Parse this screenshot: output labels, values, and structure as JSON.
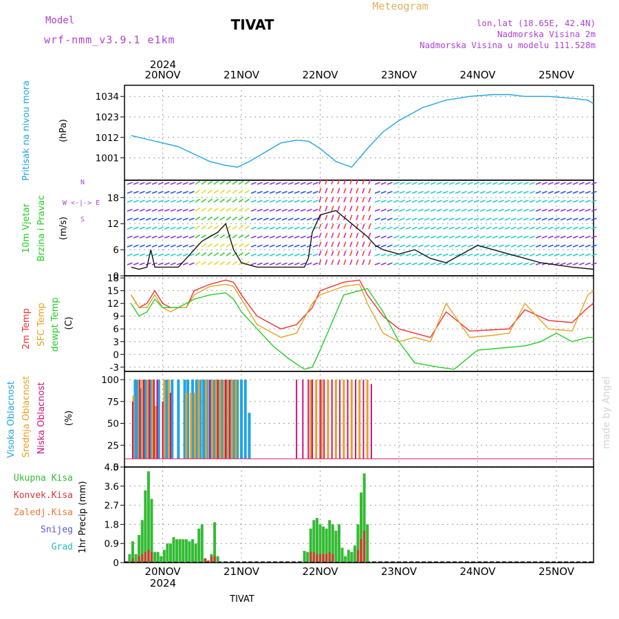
{
  "header": {
    "model_label": "Model",
    "model_name": "wrf-nmm_v3.9.1  e1km",
    "station": "TIVAT",
    "product": "Meteogram",
    "lonlat": "lon,lat (18.65E, 42.4N)",
    "elevation": "Nadmorska Visina 2m",
    "model_elevation": "Nadmorska Visina u modelu 111.528m",
    "watermark": "made by Angel",
    "footer_station": "TIVAT"
  },
  "colors": {
    "pressure": "#1fa3e6",
    "temp2m": "#ee3030",
    "sfc": "#e8a020",
    "dewpt": "#22cc22",
    "high": "#1fa3e6",
    "mid": "#e8a020",
    "low": "#d0107a",
    "precip_total": "#33bb33",
    "precip_conv": "#dd3333",
    "header_purple": "#b040d8",
    "header_gold": "#e0b060"
  },
  "time_axis": {
    "year": "2024",
    "labels": [
      "20NOV",
      "21NOV",
      "22NOV",
      "23NOV",
      "24NOV",
      "25NOV"
    ]
  },
  "chart_data": [
    {
      "type": "line",
      "panel": "pressure",
      "ylabel": "Pritisak na nivou mora",
      "unit": "(hPa)",
      "yticks": [
        "1001",
        "1012",
        "1023",
        "1034"
      ],
      "ylim": [
        989,
        1040
      ],
      "series": [
        {
          "name": "Pritisak na nivou mora",
          "x": [
            -0.4,
            -0.2,
            0.0,
            0.2,
            0.4,
            0.6,
            0.8,
            0.95,
            1.1,
            1.3,
            1.5,
            1.7,
            1.85,
            2.0,
            2.2,
            2.4,
            2.6,
            2.8,
            3.0,
            3.3,
            3.6,
            3.9,
            4.2,
            4.4,
            4.6,
            4.9,
            5.2,
            5.4,
            5.55
          ],
          "values": [
            1013,
            1011,
            1009,
            1007,
            1003,
            999,
            997,
            996,
            999,
            1004,
            1009,
            1010.5,
            1010,
            1006,
            999,
            996,
            1006,
            1015,
            1021,
            1028,
            1032,
            1034,
            1035,
            1035,
            1034,
            1034,
            1033,
            1032,
            1030
          ]
        }
      ]
    },
    {
      "type": "line",
      "panel": "wind",
      "ylabel": "10m Vjetar Brzina i Pravac",
      "unit": "(m/s)",
      "compass": "W <-|-> E",
      "compass_n": "N",
      "compass_s": "S",
      "yticks": [
        "0",
        "6",
        "12",
        "18"
      ],
      "ylim": [
        0,
        22
      ],
      "series": [
        {
          "name": "10m Vjetar Brzina",
          "x": [
            -0.4,
            -0.3,
            -0.2,
            -0.15,
            -0.1,
            0.0,
            0.2,
            0.3,
            0.4,
            0.5,
            0.6,
            0.7,
            0.8,
            0.9,
            1.0,
            1.2,
            1.5,
            1.8,
            1.85,
            1.9,
            2.0,
            2.2,
            2.4,
            2.6,
            2.7,
            2.8,
            3.0,
            3.2,
            3.4,
            3.6,
            4.0,
            4.4,
            4.8,
            5.2,
            5.55
          ],
          "values": [
            2,
            1.5,
            2,
            6,
            2,
            2,
            2,
            4,
            6,
            8,
            9,
            10,
            12,
            6,
            3,
            2,
            2,
            2,
            4,
            10,
            14,
            15,
            12,
            9,
            7,
            6,
            5,
            6,
            4,
            3,
            7,
            5,
            3,
            2,
            1.5
          ]
        }
      ]
    },
    {
      "type": "line",
      "panel": "temperature",
      "unit": "(C)",
      "yticks": [
        "-3",
        "0",
        "3",
        "6",
        "9",
        "12",
        "15",
        "18"
      ],
      "ylim": [
        -4,
        18.5
      ],
      "series": [
        {
          "name": "2m Temp",
          "x": [
            -0.4,
            -0.3,
            -0.2,
            -0.1,
            0.0,
            0.1,
            0.2,
            0.3,
            0.4,
            0.6,
            0.8,
            0.9,
            1.0,
            1.2,
            1.5,
            1.7,
            1.9,
            2.0,
            2.3,
            2.5,
            2.6,
            2.8,
            3.0,
            3.2,
            3.4,
            3.6,
            3.9,
            4.2,
            4.4,
            4.6,
            4.9,
            5.2,
            5.4,
            5.55
          ],
          "values": [
            14,
            11,
            12,
            15,
            12,
            11,
            11,
            11,
            15,
            16.5,
            17.5,
            17,
            14,
            9,
            6,
            7,
            11,
            15,
            17,
            17.5,
            14,
            9,
            6,
            5,
            4,
            10,
            5.5,
            5.8,
            6,
            10.5,
            8,
            7.5,
            11,
            12
          ]
        },
        {
          "name": "SFC Temp",
          "x": [
            -0.4,
            -0.3,
            -0.2,
            -0.1,
            0.0,
            0.1,
            0.2,
            0.3,
            0.4,
            0.6,
            0.8,
            0.9,
            1.0,
            1.2,
            1.5,
            1.7,
            1.9,
            2.0,
            2.3,
            2.5,
            2.6,
            2.8,
            3.0,
            3.2,
            3.4,
            3.6,
            3.9,
            4.2,
            4.4,
            4.6,
            4.9,
            5.2,
            5.4,
            5.55
          ],
          "values": [
            14,
            11,
            11,
            14,
            11,
            10,
            11,
            11,
            14,
            16,
            16.5,
            16,
            13,
            7,
            4,
            5,
            12,
            14,
            16,
            16.5,
            12,
            5,
            3,
            4,
            3,
            12,
            4,
            4.5,
            5,
            12,
            6,
            5.5,
            14,
            15
          ]
        },
        {
          "name": "dewpt Temp",
          "x": [
            -0.4,
            -0.3,
            -0.2,
            -0.1,
            0.0,
            0.2,
            0.4,
            0.6,
            0.8,
            0.9,
            1.0,
            1.2,
            1.4,
            1.6,
            1.8,
            1.9,
            2.0,
            2.3,
            2.5,
            2.6,
            2.8,
            3.0,
            3.2,
            3.5,
            3.7,
            4.0,
            4.3,
            4.6,
            4.8,
            5.0,
            5.2,
            5.4,
            5.55
          ],
          "values": [
            12,
            9,
            10,
            13,
            11,
            11,
            13,
            14,
            14.5,
            13,
            10,
            6,
            2,
            -1,
            -3.5,
            -3,
            1,
            14,
            15,
            15.5,
            10,
            3,
            -2,
            -3,
            -3.5,
            1,
            1.5,
            2,
            3,
            5,
            3,
            4,
            4
          ]
        }
      ]
    },
    {
      "type": "bar",
      "panel": "clouds",
      "ylabel_high": "Visoka Oblacnost",
      "ylabel_mid": "Srednja Oblacnost",
      "ylabel_low": "Niska Oblacnost",
      "unit": "(%)",
      "yticks": [
        "0",
        "25",
        "50",
        "75",
        "100"
      ],
      "ylim": [
        0,
        100
      ],
      "series": [
        {
          "name": "Visoka Oblacnost",
          "x": [
            -0.35,
            -0.32,
            -0.28,
            -0.22,
            -0.15,
            -0.12,
            -0.05,
            0.05,
            0.12,
            0.2,
            0.28,
            0.32,
            0.38,
            0.43,
            0.48,
            0.52,
            0.56,
            0.6,
            0.65,
            0.7,
            0.75,
            0.8,
            0.85,
            0.9,
            0.95,
            1.0,
            1.05,
            1.1
          ],
          "values": [
            100,
            100,
            90,
            100,
            100,
            100,
            100,
            100,
            100,
            100,
            100,
            100,
            100,
            100,
            100,
            100,
            100,
            100,
            100,
            100,
            100,
            100,
            100,
            100,
            100,
            100,
            100,
            62
          ]
        },
        {
          "name": "Srednja Oblacnost",
          "x": [
            -0.37,
            -0.3,
            -0.26,
            -0.19,
            -0.13,
            -0.09,
            0.02,
            0.08,
            0.3,
            0.36,
            0.41,
            0.46,
            0.55,
            0.63,
            0.68,
            0.73,
            0.78,
            0.83,
            0.88,
            0.93,
            1.82,
            1.88,
            1.95,
            2.02,
            2.1,
            2.2,
            2.3,
            2.4,
            2.5,
            2.6
          ],
          "values": [
            82,
            100,
            100,
            100,
            100,
            70,
            100,
            100,
            85,
            85,
            85,
            100,
            100,
            100,
            100,
            100,
            100,
            100,
            100,
            100,
            10,
            100,
            100,
            100,
            100,
            100,
            100,
            100,
            100,
            100
          ]
        },
        {
          "name": "Niska Oblacnost",
          "x": [
            -0.38,
            -0.29,
            -0.24,
            -0.17,
            -0.11,
            -0.07,
            0.0,
            0.1,
            0.6,
            0.7,
            0.8,
            0.85,
            1.7,
            1.78,
            1.85,
            1.9,
            2.0,
            2.05,
            2.15,
            2.25,
            2.35,
            2.45,
            2.55,
            2.65,
            3.65
          ],
          "values": [
            75,
            100,
            100,
            100,
            100,
            100,
            75,
            85,
            100,
            100,
            100,
            100,
            100,
            100,
            100,
            100,
            100,
            100,
            100,
            100,
            100,
            100,
            100,
            95,
            5
          ]
        }
      ]
    },
    {
      "type": "bar",
      "panel": "precip",
      "legend": [
        "Ukupna Kisa",
        "Konvek.Kisa",
        "Zaledj.Kisa",
        "Snijeg",
        "Grad"
      ],
      "unit": "1hr Precip (mm)",
      "yticks": [
        "0",
        "0.9",
        "1.8",
        "2.7",
        "3.6",
        "4.5"
      ],
      "ylim": [
        0,
        4.5
      ],
      "series": [
        {
          "name": "Ukupna Kisa",
          "x": [
            -0.42,
            -0.38,
            -0.34,
            -0.3,
            -0.26,
            -0.22,
            -0.18,
            -0.14,
            -0.1,
            -0.06,
            -0.02,
            0.02,
            0.06,
            0.1,
            0.14,
            0.18,
            0.22,
            0.26,
            0.3,
            0.34,
            0.38,
            0.42,
            0.46,
            0.5,
            0.54,
            0.58,
            0.62,
            0.66,
            0.7,
            0.74,
            0.82,
            0.86,
            0.9,
            1.8,
            1.84,
            1.88,
            1.92,
            1.96,
            2.0,
            2.04,
            2.08,
            2.12,
            2.16,
            2.2,
            2.24,
            2.28,
            2.32,
            2.36,
            2.4,
            2.44,
            2.48,
            2.52,
            2.56,
            2.6
          ],
          "values": [
            0.4,
            1.0,
            0.4,
            1.3,
            2.0,
            3.4,
            4.3,
            3.0,
            0.5,
            0.5,
            0.3,
            0.6,
            0.9,
            0.9,
            1.2,
            1.1,
            1.1,
            1.1,
            1.1,
            1.0,
            1.1,
            0.9,
            1.6,
            1.8,
            0.2,
            0.1,
            0.4,
            1.9,
            0.3,
            0.0,
            0.0,
            0.0,
            0.0,
            0.55,
            0.5,
            1.6,
            2.0,
            2.1,
            1.8,
            1.7,
            1.6,
            2.0,
            1.8,
            1.5,
            1.8,
            0.7,
            0.3,
            0.6,
            0.5,
            0.8,
            1.8,
            3.3,
            4.2,
            1.8
          ]
        },
        {
          "name": "Konvek.Kisa",
          "x": [
            -0.38,
            -0.3,
            -0.26,
            -0.22,
            -0.18,
            -0.14,
            0.54,
            0.58,
            0.62,
            0.66,
            1.88,
            1.92,
            1.96,
            2.0,
            2.04,
            2.08,
            2.12,
            2.16,
            2.48,
            2.52,
            2.56
          ],
          "values": [
            0.2,
            0.3,
            0.4,
            0.5,
            0.6,
            0.5,
            0.2,
            0.1,
            0.3,
            0.3,
            0.5,
            0.5,
            0.4,
            0.4,
            0.4,
            0.4,
            0.5,
            0.4,
            0.6,
            1.1,
            1.5
          ]
        }
      ]
    }
  ]
}
